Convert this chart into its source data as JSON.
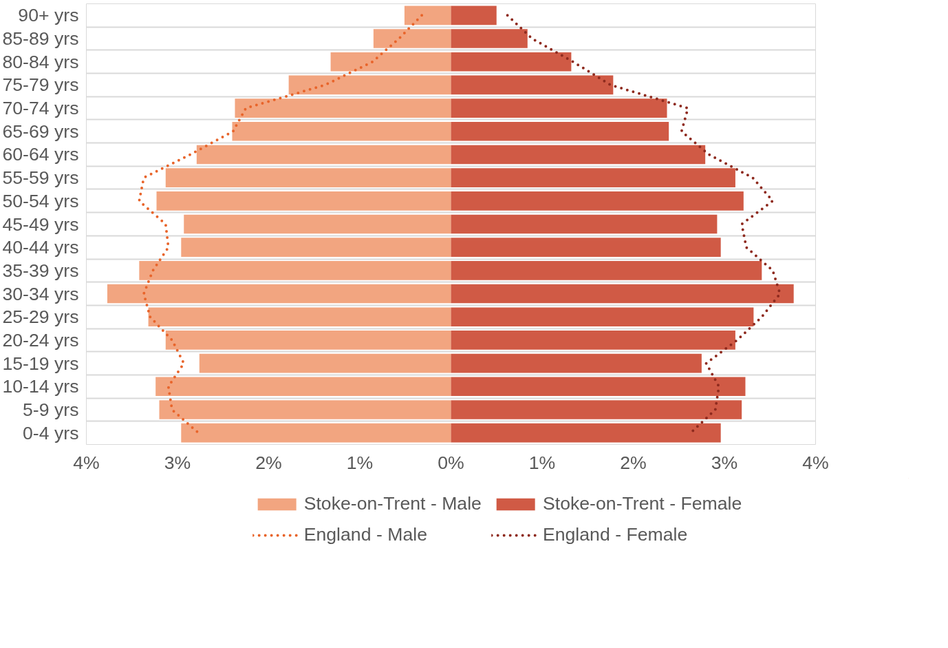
{
  "chart_data": {
    "type": "bar",
    "orientation": "horizontal",
    "stacked": true,
    "categories": [
      "90+ yrs",
      "85-89 yrs",
      "80-84 yrs",
      "75-79 yrs",
      "70-74 yrs",
      "65-69 yrs",
      "60-64 yrs",
      "55-59 yrs",
      "50-54 yrs",
      "45-49 yrs",
      "40-44 yrs",
      "35-39 yrs",
      "30-34 yrs",
      "25-29 yrs",
      "20-24 yrs",
      "15-19 yrs",
      "10-14 yrs",
      "5-9 yrs",
      "0-4 yrs"
    ],
    "series": [
      {
        "name": "Stoke-on-Trent - Male",
        "color": "#f2a580",
        "values": [
          -0.51,
          -0.85,
          -1.32,
          -1.78,
          -2.37,
          -2.4,
          -2.79,
          -3.13,
          -3.23,
          -2.93,
          -2.96,
          -3.42,
          -3.77,
          -3.32,
          -3.13,
          -2.76,
          -3.24,
          -3.2,
          -2.96
        ]
      },
      {
        "name": "Stoke-on-Trent - Female",
        "color": "#d05a45",
        "values": [
          0.5,
          0.84,
          1.32,
          1.78,
          2.37,
          2.39,
          2.79,
          3.12,
          3.21,
          2.92,
          2.96,
          3.41,
          3.76,
          3.32,
          3.12,
          2.75,
          3.23,
          3.19,
          2.96
        ]
      },
      {
        "name": "England - Male",
        "type": "line",
        "line_style": "dotted",
        "color": "#e8642a",
        "values": [
          -0.32,
          -0.57,
          -0.86,
          -1.38,
          -2.25,
          -2.39,
          -2.86,
          -3.37,
          -3.42,
          -3.13,
          -3.1,
          -3.27,
          -3.37,
          -3.3,
          -3.06,
          -2.93,
          -3.1,
          -3.06,
          -2.77
        ]
      },
      {
        "name": "England - Female",
        "type": "line",
        "line_style": "dotted",
        "color": "#8e2a1e",
        "values": [
          0.62,
          0.89,
          1.34,
          1.75,
          2.6,
          2.53,
          2.83,
          3.31,
          3.53,
          3.19,
          3.24,
          3.53,
          3.61,
          3.41,
          3.14,
          2.8,
          2.94,
          2.9,
          2.63
        ]
      }
    ],
    "xlim": [
      -4,
      4
    ],
    "xticks": [
      {
        "value": -4,
        "label": "4%"
      },
      {
        "value": -3,
        "label": "3%"
      },
      {
        "value": -2,
        "label": "2%"
      },
      {
        "value": -1,
        "label": "1%"
      },
      {
        "value": 0,
        "label": "0%"
      },
      {
        "value": 1,
        "label": "1%"
      },
      {
        "value": 2,
        "label": "2%"
      },
      {
        "value": 3,
        "label": "3%"
      },
      {
        "value": 4,
        "label": "4%"
      }
    ],
    "grid": "y",
    "legend": "bottom",
    "marker": "none"
  }
}
